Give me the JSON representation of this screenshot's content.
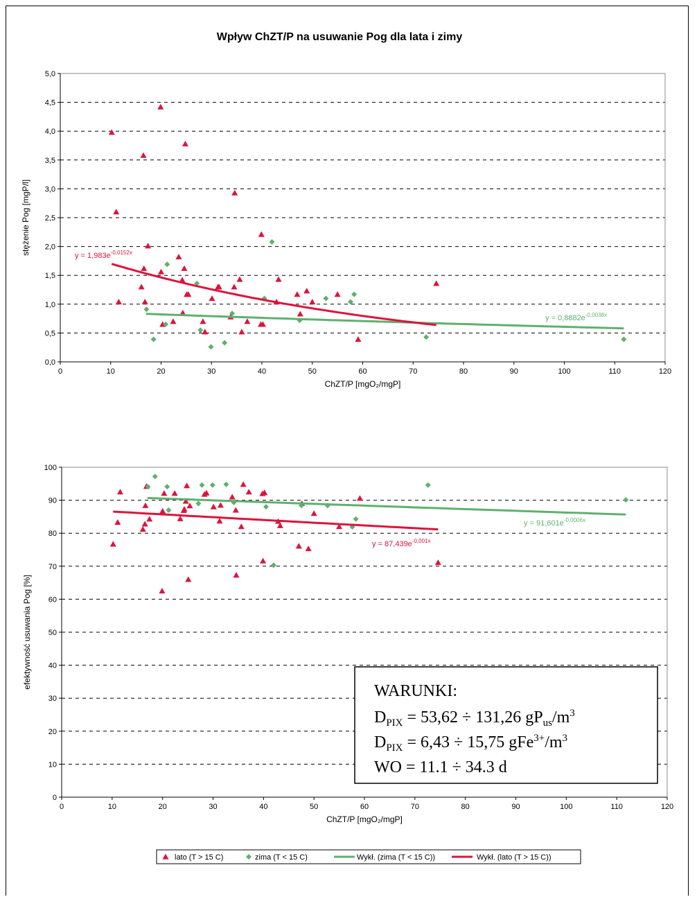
{
  "figure": {
    "title": "Wpływ ChZT/P na usuwanie Pog  dla lata i zimy",
    "colors": {
      "lato": "#dc143c",
      "zima": "#5fb06e"
    }
  },
  "chart_data": [
    {
      "type": "scatter",
      "title": "Wpływ ChZT/P na usuwanie Pog  dla lata i zimy",
      "xlabel": "ChZT/P [mgO₂/mgP]",
      "ylabel": "stężenie Pog [mgP/l]",
      "xlim": [
        0,
        120
      ],
      "ylim": [
        0,
        5
      ],
      "xticks": [
        0,
        10,
        20,
        30,
        40,
        50,
        60,
        70,
        80,
        90,
        100,
        110,
        120
      ],
      "xtick_labels": [
        "0",
        "10",
        "20",
        "30",
        "40",
        "50",
        "60",
        "70",
        "80",
        "90",
        "100",
        "110",
        "120"
      ],
      "yticks": [
        0,
        0.5,
        1,
        1.5,
        2,
        2.5,
        3,
        3.5,
        4,
        4.5,
        5
      ],
      "ytick_labels": [
        "0,0",
        "0,5",
        "1,0",
        "1,5",
        "2,0",
        "2,5",
        "3,0",
        "3,5",
        "4,0",
        "4,5",
        "5,0"
      ],
      "grid": "horizontal dashed",
      "series": [
        {
          "name": "lato (T > 15  C)",
          "marker": "triangle",
          "points": [
            [
              10.2,
              3.98
            ],
            [
              11.1,
              2.6
            ],
            [
              11.6,
              1.04
            ],
            [
              16.1,
              1.3
            ],
            [
              16.5,
              3.58
            ],
            [
              16.6,
              1.62
            ],
            [
              16.8,
              1.04
            ],
            [
              17.4,
              2.01
            ],
            [
              19.9,
              4.42
            ],
            [
              20,
              1.56
            ],
            [
              20.3,
              0.65
            ],
            [
              22.4,
              0.7
            ],
            [
              23.5,
              1.82
            ],
            [
              24.2,
              1.42
            ],
            [
              24.3,
              0.85
            ],
            [
              24.6,
              1.62
            ],
            [
              24.8,
              3.78
            ],
            [
              25.1,
              1.17
            ],
            [
              25.4,
              1.17
            ],
            [
              28.3,
              0.7
            ],
            [
              28.7,
              0.52
            ],
            [
              30.1,
              1.1
            ],
            [
              31.3,
              1.3
            ],
            [
              31.5,
              1.3
            ],
            [
              33.8,
              0.78
            ],
            [
              34.5,
              1.3
            ],
            [
              34.6,
              2.93
            ],
            [
              35.6,
              1.43
            ],
            [
              36,
              0.52
            ],
            [
              37.1,
              0.7
            ],
            [
              39.8,
              0.65
            ],
            [
              39.9,
              2.21
            ],
            [
              40.2,
              0.65
            ],
            [
              42.9,
              1.04
            ],
            [
              43.3,
              1.43
            ],
            [
              47,
              1.17
            ],
            [
              47.6,
              0.83
            ],
            [
              48.9,
              1.23
            ],
            [
              50,
              1.04
            ],
            [
              55,
              1.17
            ],
            [
              59.1,
              0.39
            ],
            [
              74.6,
              1.36
            ]
          ]
        },
        {
          "name": "zima (T < 15  C)",
          "marker": "diamond",
          "points": [
            [
              17.1,
              0.91
            ],
            [
              18.5,
              0.39
            ],
            [
              20.9,
              0.65
            ],
            [
              21.2,
              1.69
            ],
            [
              27.1,
              1.36
            ],
            [
              27.8,
              0.55
            ],
            [
              29.9,
              0.26
            ],
            [
              32.6,
              0.33
            ],
            [
              34.1,
              0.84
            ],
            [
              40.5,
              1.1
            ],
            [
              42,
              2.08
            ],
            [
              47.5,
              0.72
            ],
            [
              52.7,
              1.1
            ],
            [
              57.6,
              1.04
            ],
            [
              58.3,
              1.17
            ],
            [
              72.6,
              0.43
            ],
            [
              111.8,
              0.39
            ]
          ]
        },
        {
          "name": "Wykł. (zima (T < 15  C))",
          "type": "trendline",
          "equation": "y = 0,8882e-0,0038x",
          "equation_main": "y = 0,8882e",
          "equation_exp": "-0,0038x",
          "a": 0.8882,
          "b": -0.0038,
          "x_range": [
            17,
            111.8
          ]
        },
        {
          "name": "Wykł. (lato (T > 15  C))",
          "type": "trendline",
          "equation": "y = 1,983e-0,0152x",
          "equation_main": "y = 1,983e",
          "equation_exp": "-0,0152x",
          "a": 1.983,
          "b": -0.0152,
          "x_range": [
            10.2,
            74.6
          ]
        }
      ]
    },
    {
      "type": "scatter",
      "xlabel": "ChZT/P [mgO₂/mgP]",
      "ylabel": "efektywność usuwania Pog [%]",
      "xlim": [
        0,
        120
      ],
      "ylim": [
        0,
        100
      ],
      "xticks": [
        0,
        10,
        20,
        30,
        40,
        50,
        60,
        70,
        80,
        90,
        100,
        110,
        120
      ],
      "xtick_labels": [
        "0",
        "10",
        "20",
        "30",
        "40",
        "50",
        "60",
        "70",
        "80",
        "90",
        "100",
        "110",
        "120"
      ],
      "yticks": [
        0,
        10,
        20,
        30,
        40,
        50,
        60,
        70,
        80,
        90,
        100
      ],
      "ytick_labels": [
        "0",
        "10",
        "20",
        "30",
        "40",
        "50",
        "60",
        "70",
        "80",
        "90",
        "100"
      ],
      "grid": "horizontal dashed",
      "series": [
        {
          "name": "lato (T > 15  C)",
          "marker": "triangle",
          "points": [
            [
              10.2,
              76.7
            ],
            [
              11.1,
              83.3
            ],
            [
              11.6,
              92.5
            ],
            [
              16.1,
              81.2
            ],
            [
              16.5,
              82.8
            ],
            [
              16.6,
              88.4
            ],
            [
              16.8,
              94.2
            ],
            [
              17.4,
              84.3
            ],
            [
              19.9,
              62.5
            ],
            [
              20,
              86.7
            ],
            [
              20.3,
              92.1
            ],
            [
              22.4,
              92.1
            ],
            [
              23.5,
              84.4
            ],
            [
              24.2,
              86.9
            ],
            [
              24.3,
              87.3
            ],
            [
              24.6,
              89.7
            ],
            [
              24.8,
              94.4
            ],
            [
              25.1,
              66
            ],
            [
              25.4,
              88.3
            ],
            [
              28.3,
              91.8
            ],
            [
              28.7,
              92.2
            ],
            [
              30.1,
              88
            ],
            [
              31.3,
              83.7
            ],
            [
              31.5,
              88.5
            ],
            [
              33.8,
              91
            ],
            [
              34.5,
              87
            ],
            [
              34.6,
              67.3
            ],
            [
              35.6,
              82
            ],
            [
              36,
              94.8
            ],
            [
              37.1,
              92.5
            ],
            [
              39.8,
              92
            ],
            [
              39.9,
              71.6
            ],
            [
              40.2,
              92.3
            ],
            [
              42.9,
              83.6
            ],
            [
              43.3,
              82.3
            ],
            [
              47,
              76.1
            ],
            [
              47.6,
              89
            ],
            [
              48.9,
              75.3
            ],
            [
              50,
              86
            ],
            [
              55,
              82
            ],
            [
              59.1,
              90.6
            ],
            [
              74.6,
              71.1
            ]
          ]
        },
        {
          "name": "zima (T < 15  C)",
          "marker": "diamond",
          "points": [
            [
              17.1,
              94.1
            ],
            [
              18.5,
              97.2
            ],
            [
              20.9,
              94.1
            ],
            [
              21.2,
              87
            ],
            [
              27.1,
              89
            ],
            [
              27.8,
              94.6
            ],
            [
              29.9,
              94.6
            ],
            [
              32.6,
              94.8
            ],
            [
              34.1,
              89.3
            ],
            [
              40.5,
              88
            ],
            [
              42,
              70.3
            ],
            [
              47.5,
              88.4
            ],
            [
              52.7,
              88.4
            ],
            [
              57.6,
              81.9
            ],
            [
              58.3,
              84.3
            ],
            [
              72.6,
              94.6
            ],
            [
              111.8,
              90.1
            ]
          ]
        },
        {
          "name": "Wykł. (zima (T < 15  C))",
          "type": "trendline",
          "equation": "y = 91,601e-0,0006x",
          "equation_main": "y = 91,601e",
          "equation_exp": "-0,0006x",
          "a": 91.601,
          "b": -0.0006,
          "x_range": [
            17,
            111.8
          ]
        },
        {
          "name": "Wykł. (lato (T > 15  C))",
          "type": "trendline",
          "equation": "y = 87,439e-0,001x",
          "equation_main": "y = 87,439e",
          "equation_exp": "-0,001x",
          "a": 87.439,
          "b": -0.001,
          "x_range": [
            10.2,
            74.6
          ]
        }
      ]
    }
  ],
  "conditions": {
    "heading": "WARUNKI:",
    "lines": [
      {
        "lhs": "D",
        "lhs_sub": "PIX",
        "text": " = 53,62  ÷ 131,26 gP",
        "sub": "us",
        "unit": "/m",
        "sup": "3"
      },
      {
        "lhs": "D",
        "lhs_sub": "PIX",
        "text": " =  6,43 ÷ 15,75 gFe",
        "sup1": "3+",
        "unit": "/m",
        "sup": "3"
      },
      {
        "text": "WO = 11.1 ÷ 34.3 d"
      }
    ]
  },
  "legend": {
    "placement": "bottom-center",
    "items": [
      {
        "label": "lato (T > 15  C)",
        "symbol": "triangle",
        "color": "#dc143c"
      },
      {
        "label": "zima (T < 15  C)",
        "symbol": "diamond",
        "color": "#5fb06e"
      },
      {
        "label": "Wykł. (zima (T < 15  C))",
        "symbol": "line",
        "color": "#5fb06e"
      },
      {
        "label": "Wykł. (lato (T > 15  C))",
        "symbol": "line",
        "color": "#dc143c"
      }
    ]
  }
}
